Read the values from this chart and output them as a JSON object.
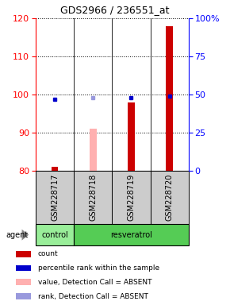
{
  "title": "GDS2966 / 236551_at",
  "samples": [
    "GSM228717",
    "GSM228718",
    "GSM228719",
    "GSM228720"
  ],
  "ylim_left": [
    80,
    120
  ],
  "ylim_right": [
    0,
    100
  ],
  "yticks_left": [
    80,
    90,
    100,
    110,
    120
  ],
  "yticks_right": [
    0,
    25,
    50,
    75,
    100
  ],
  "ytick_labels_right": [
    "0",
    "25",
    "50",
    "75",
    "100%"
  ],
  "count_values": [
    81,
    0,
    98,
    118
  ],
  "count_absent_values": [
    0,
    91,
    0,
    0
  ],
  "count_color": "#cc0000",
  "count_absent_color": "#ffb0b0",
  "rank_values": [
    47,
    0,
    48,
    49
  ],
  "rank_absent_values": [
    0,
    48,
    0,
    0
  ],
  "rank_color": "#0000cc",
  "rank_absent_color": "#9999dd",
  "detection_absent": [
    false,
    true,
    false,
    false
  ],
  "legend_items": [
    {
      "color": "#cc0000",
      "label": "count"
    },
    {
      "color": "#0000cc",
      "label": "percentile rank within the sample"
    },
    {
      "color": "#ffb0b0",
      "label": "value, Detection Call = ABSENT"
    },
    {
      "color": "#9999dd",
      "label": "rank, Detection Call = ABSENT"
    }
  ],
  "agent_label": "agent",
  "bar_width": 0.18,
  "control_color": "#99ee99",
  "resveratrol_color": "#55cc55",
  "sample_box_color": "#cccccc"
}
